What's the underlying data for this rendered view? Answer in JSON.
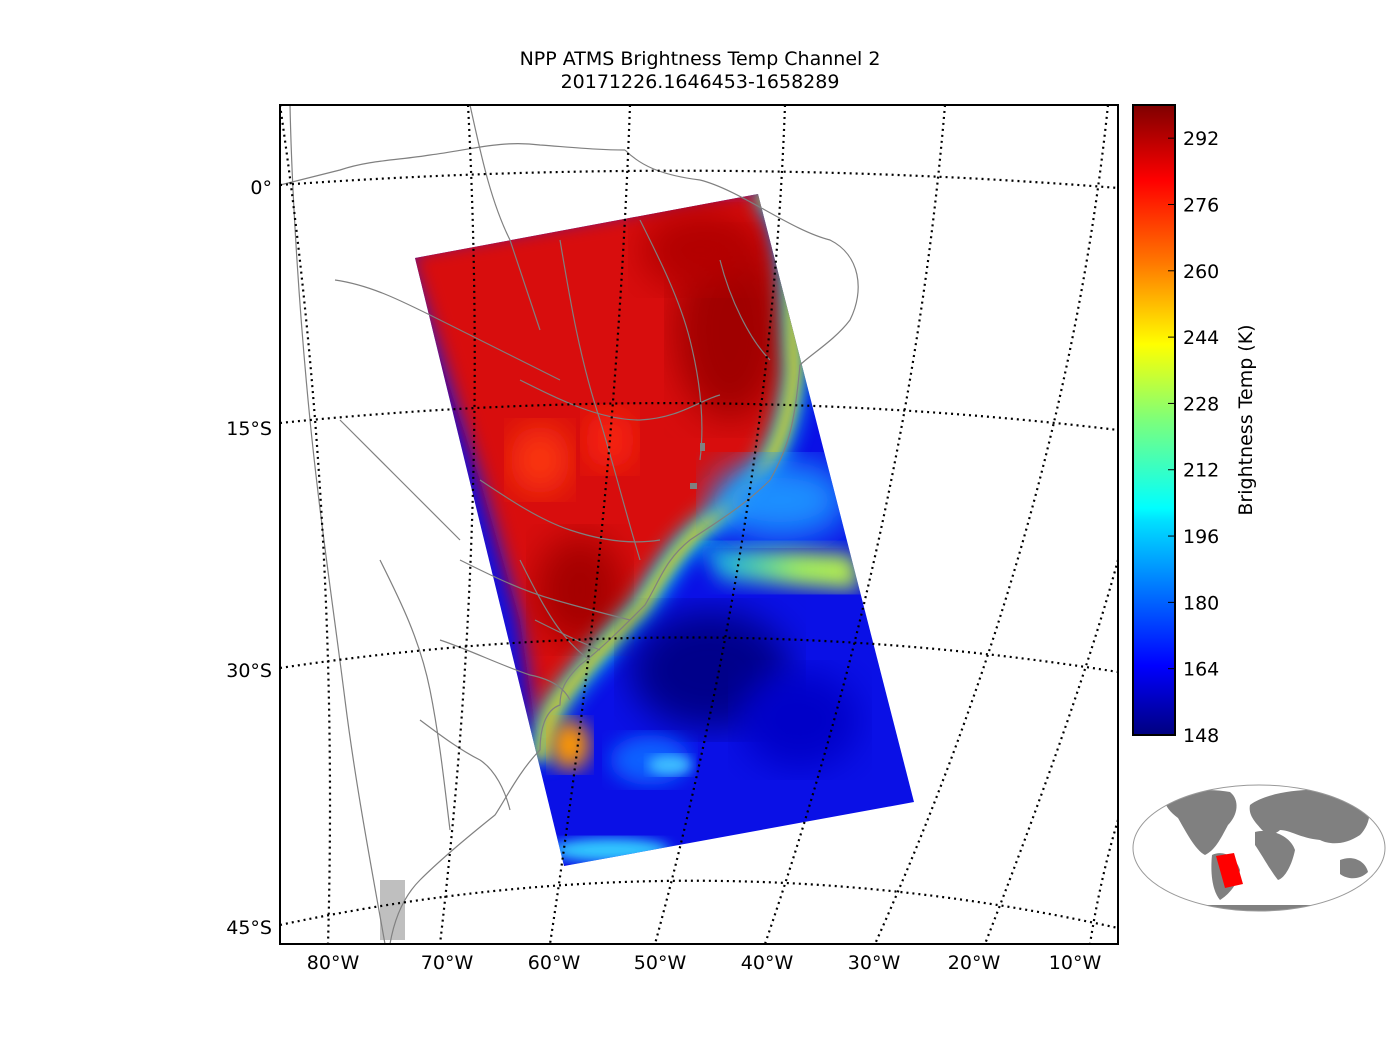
{
  "title": {
    "line1": "NPP ATMS Brightness Temp Channel 2",
    "line2": "20171226.1646453-1658289"
  },
  "map": {
    "lat_labels": [
      "0°",
      "15°S",
      "30°S",
      "45°S"
    ],
    "lon_labels": [
      "80°W",
      "70°W",
      "60°W",
      "50°W",
      "40°W",
      "30°W",
      "20°W",
      "10°W"
    ],
    "gridline_style": "dotted",
    "land_outline_color": "#808080",
    "swath_corners": [
      {
        "lon": -73,
        "lat": -4.5
      },
      {
        "lon": -39.5,
        "lat": 0.5
      },
      {
        "lon": -24,
        "lat": -38
      },
      {
        "lon": -59,
        "lat": -42.5
      }
    ]
  },
  "colorbar": {
    "label": "Brightness Temp (K)",
    "ticks": [
      "292",
      "276",
      "260",
      "244",
      "228",
      "212",
      "196",
      "180",
      "164",
      "148"
    ],
    "min": 148,
    "max": 300,
    "colormap": "jet"
  },
  "inset": {
    "land_color": "#808080",
    "swath_color": "#ff0000"
  }
}
